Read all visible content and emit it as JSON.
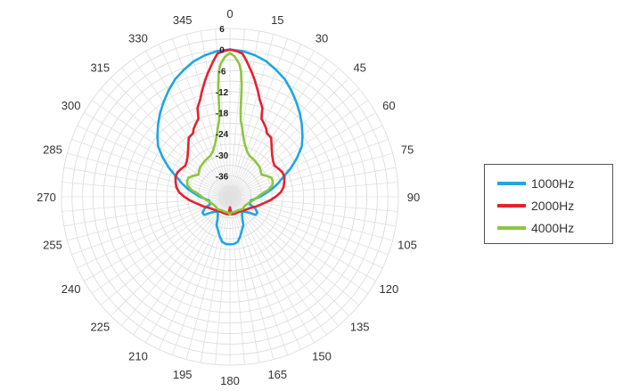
{
  "chart_data": {
    "type": "polar-line",
    "angle_labels": [
      "0",
      "15",
      "30",
      "45",
      "60",
      "75",
      "90",
      "105",
      "120",
      "135",
      "150",
      "165",
      "180",
      "195",
      "210",
      "225",
      "240",
      "255",
      "270",
      "285",
      "300",
      "315",
      "330",
      "345"
    ],
    "radial_ticks": [
      6,
      0,
      -6,
      -12,
      -18,
      -24,
      -30,
      -36
    ],
    "rlim": [
      -42,
      6
    ],
    "grid": true,
    "legend_position": "right",
    "series": [
      {
        "name": "1000Hz",
        "color": "#1ea7e1",
        "points": [
          [
            0,
            0
          ],
          [
            5,
            -0.3
          ],
          [
            10,
            -1
          ],
          [
            15,
            -2
          ],
          [
            20,
            -3.5
          ],
          [
            25,
            -5
          ],
          [
            30,
            -7
          ],
          [
            35,
            -9
          ],
          [
            40,
            -11
          ],
          [
            45,
            -13
          ],
          [
            50,
            -15
          ],
          [
            55,
            -17
          ],
          [
            60,
            -20
          ],
          [
            65,
            -23
          ],
          [
            70,
            -26
          ],
          [
            75,
            -28
          ],
          [
            80,
            -30
          ],
          [
            85,
            -32
          ],
          [
            90,
            -33.5
          ],
          [
            95,
            -35
          ],
          [
            100,
            -36
          ],
          [
            105,
            -36
          ],
          [
            110,
            -36
          ],
          [
            115,
            -34
          ],
          [
            120,
            -33
          ],
          [
            125,
            -33
          ],
          [
            130,
            -35
          ],
          [
            135,
            -36
          ],
          [
            140,
            -36.5
          ],
          [
            145,
            -36
          ],
          [
            150,
            -35
          ],
          [
            155,
            -33
          ],
          [
            160,
            -32
          ],
          [
            165,
            -30.5
          ],
          [
            170,
            -29
          ],
          [
            175,
            -28.5
          ],
          [
            180,
            -28.5
          ],
          [
            185,
            -28.5
          ],
          [
            190,
            -29
          ],
          [
            195,
            -30.5
          ],
          [
            200,
            -32
          ],
          [
            205,
            -33
          ],
          [
            210,
            -35
          ],
          [
            215,
            -36
          ],
          [
            220,
            -36.5
          ],
          [
            225,
            -36
          ],
          [
            230,
            -35
          ],
          [
            235,
            -33
          ],
          [
            240,
            -33
          ],
          [
            245,
            -34
          ],
          [
            250,
            -36
          ],
          [
            255,
            -36
          ],
          [
            260,
            -36
          ],
          [
            265,
            -35
          ],
          [
            270,
            -33.5
          ],
          [
            275,
            -32
          ],
          [
            280,
            -30
          ],
          [
            285,
            -28
          ],
          [
            290,
            -26
          ],
          [
            295,
            -23
          ],
          [
            300,
            -20
          ],
          [
            305,
            -17
          ],
          [
            310,
            -15
          ],
          [
            315,
            -13
          ],
          [
            320,
            -11
          ],
          [
            325,
            -9
          ],
          [
            330,
            -7
          ],
          [
            335,
            -5
          ],
          [
            340,
            -3.5
          ],
          [
            345,
            -2
          ],
          [
            350,
            -1
          ],
          [
            355,
            -0.3
          ],
          [
            360,
            0
          ]
        ]
      },
      {
        "name": "2000Hz",
        "color": "#e5212f",
        "points": [
          [
            0,
            0
          ],
          [
            3,
            -0.5
          ],
          [
            5,
            -1
          ],
          [
            7,
            -3
          ],
          [
            10,
            -6
          ],
          [
            12,
            -8
          ],
          [
            15,
            -11
          ],
          [
            17,
            -13
          ],
          [
            20,
            -15
          ],
          [
            22,
            -18
          ],
          [
            25,
            -19
          ],
          [
            28,
            -20
          ],
          [
            30,
            -21
          ],
          [
            35,
            -21.5
          ],
          [
            40,
            -23.5
          ],
          [
            45,
            -25
          ],
          [
            50,
            -26
          ],
          [
            55,
            -26.5
          ],
          [
            60,
            -26
          ],
          [
            65,
            -25.5
          ],
          [
            70,
            -25.5
          ],
          [
            75,
            -26
          ],
          [
            80,
            -26.5
          ],
          [
            85,
            -27.5
          ],
          [
            90,
            -29
          ],
          [
            95,
            -30.5
          ],
          [
            100,
            -32
          ],
          [
            110,
            -34
          ],
          [
            120,
            -35.5
          ],
          [
            135,
            -36.5
          ],
          [
            150,
            -37
          ],
          [
            165,
            -37
          ],
          [
            175,
            -37
          ],
          [
            178,
            -38.5
          ],
          [
            180,
            -39
          ],
          [
            182,
            -38.5
          ],
          [
            185,
            -37
          ],
          [
            195,
            -37
          ],
          [
            210,
            -37
          ],
          [
            225,
            -36.5
          ],
          [
            240,
            -35.5
          ],
          [
            250,
            -34
          ],
          [
            260,
            -32
          ],
          [
            265,
            -30.5
          ],
          [
            270,
            -29
          ],
          [
            275,
            -27.5
          ],
          [
            280,
            -26.5
          ],
          [
            285,
            -26
          ],
          [
            290,
            -25.5
          ],
          [
            295,
            -25.5
          ],
          [
            300,
            -26
          ],
          [
            305,
            -26.5
          ],
          [
            310,
            -26
          ],
          [
            315,
            -25
          ],
          [
            320,
            -23.5
          ],
          [
            325,
            -21.5
          ],
          [
            330,
            -21
          ],
          [
            332,
            -20
          ],
          [
            335,
            -19
          ],
          [
            338,
            -18
          ],
          [
            340,
            -15
          ],
          [
            343,
            -13
          ],
          [
            345,
            -11
          ],
          [
            348,
            -8
          ],
          [
            350,
            -6
          ],
          [
            353,
            -3
          ],
          [
            355,
            -1
          ],
          [
            357,
            -0.5
          ],
          [
            360,
            0
          ]
        ]
      },
      {
        "name": "4000Hz",
        "color": "#8cc63f",
        "points": [
          [
            0,
            -1
          ],
          [
            2,
            -2
          ],
          [
            4,
            -4
          ],
          [
            5,
            -6
          ],
          [
            6,
            -10
          ],
          [
            7,
            -17
          ],
          [
            8,
            -20
          ],
          [
            10,
            -22
          ],
          [
            12,
            -24
          ],
          [
            15,
            -26
          ],
          [
            20,
            -28
          ],
          [
            25,
            -29
          ],
          [
            35,
            -29.5
          ],
          [
            45,
            -30
          ],
          [
            55,
            -31
          ],
          [
            60,
            -30
          ],
          [
            65,
            -29
          ],
          [
            70,
            -29
          ],
          [
            75,
            -29.5
          ],
          [
            80,
            -31
          ],
          [
            85,
            -33
          ],
          [
            90,
            -34
          ],
          [
            100,
            -35.5
          ],
          [
            110,
            -36.5
          ],
          [
            120,
            -37
          ],
          [
            135,
            -37
          ],
          [
            150,
            -37.5
          ],
          [
            165,
            -37.5
          ],
          [
            175,
            -37.5
          ],
          [
            180,
            -37
          ],
          [
            185,
            -37.5
          ],
          [
            195,
            -37.5
          ],
          [
            210,
            -37.5
          ],
          [
            225,
            -37
          ],
          [
            240,
            -37
          ],
          [
            250,
            -36.5
          ],
          [
            260,
            -35.5
          ],
          [
            270,
            -34
          ],
          [
            275,
            -33
          ],
          [
            280,
            -31
          ],
          [
            285,
            -29.5
          ],
          [
            290,
            -29
          ],
          [
            295,
            -29
          ],
          [
            300,
            -30
          ],
          [
            305,
            -31
          ],
          [
            315,
            -30
          ],
          [
            325,
            -29.5
          ],
          [
            335,
            -29
          ],
          [
            340,
            -28
          ],
          [
            345,
            -26
          ],
          [
            348,
            -24
          ],
          [
            350,
            -22
          ],
          [
            352,
            -20
          ],
          [
            353,
            -17
          ],
          [
            354,
            -10
          ],
          [
            355,
            -6
          ],
          [
            356,
            -4
          ],
          [
            358,
            -2
          ],
          [
            360,
            -1
          ]
        ]
      }
    ]
  }
}
